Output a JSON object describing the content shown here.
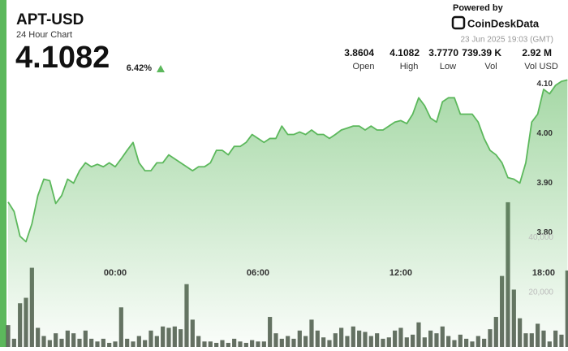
{
  "header": {
    "title": "APT-USD",
    "subtitle": "24 Hour Chart",
    "price": "4.1082",
    "change": "6.42%",
    "powered_by": "Powered by",
    "brand": "CoinDeskData",
    "timestamp": "23 Jun 2025 19:03 (GMT)",
    "stats": [
      {
        "value": "3.8604",
        "label": "Open"
      },
      {
        "value": "4.1082",
        "label": "High"
      },
      {
        "value": "3.7770",
        "label": "Low"
      },
      {
        "value": "739.39 K",
        "label": "Vol"
      },
      {
        "value": "2.92 M",
        "label": "Vol USD"
      }
    ]
  },
  "chart_data": {
    "type": "line",
    "xlim": [
      0,
      94
    ],
    "xticks": [
      {
        "value": 18,
        "label": "00:00"
      },
      {
        "value": 42,
        "label": "06:00"
      },
      {
        "value": 66,
        "label": "12:00"
      },
      {
        "value": 90,
        "label": "18:00"
      }
    ],
    "ylim": [
      3.57,
      4.12
    ],
    "yticks": [
      {
        "value": 3.8,
        "label": "3.80"
      },
      {
        "value": 3.9,
        "label": "3.90"
      },
      {
        "value": 4.0,
        "label": "4.00"
      },
      {
        "value": 4.1,
        "label": "4.10"
      }
    ],
    "y2lim": [
      0,
      100000
    ],
    "y2ticks": [
      {
        "value": 20000,
        "label": "20,000"
      },
      {
        "value": 40000,
        "label": "40,000"
      }
    ],
    "grid": false,
    "series": [
      {
        "color": "#5cb85c",
        "values": [
          3.862,
          3.843,
          3.793,
          3.782,
          3.818,
          3.875,
          3.908,
          3.905,
          3.859,
          3.875,
          3.908,
          3.9,
          3.925,
          3.941,
          3.933,
          3.938,
          3.933,
          3.941,
          3.933,
          3.949,
          3.966,
          3.982,
          3.941,
          3.925,
          3.925,
          3.941,
          3.941,
          3.957,
          3.949,
          3.941,
          3.933,
          3.925,
          3.933,
          3.933,
          3.941,
          3.966,
          3.966,
          3.957,
          3.974,
          3.974,
          3.982,
          3.998,
          3.99,
          3.982,
          3.99,
          3.99,
          4.015,
          3.998,
          3.998,
          4.003,
          3.998,
          4.007,
          3.998,
          3.998,
          3.99,
          3.998,
          4.007,
          4.011,
          4.015,
          4.015,
          4.007,
          4.015,
          4.007,
          4.007,
          4.015,
          4.023,
          4.026,
          4.02,
          4.039,
          4.072,
          4.056,
          4.031,
          4.023,
          4.064,
          4.072,
          4.072,
          4.039,
          4.039,
          4.039,
          4.023,
          3.99,
          3.966,
          3.957,
          3.941,
          3.911,
          3.908,
          3.9,
          3.941,
          4.023,
          4.039,
          4.089,
          4.08,
          4.097,
          4.105,
          4.108
        ]
      },
      {
        "type": "bar",
        "axis": "y2",
        "color": "#4a5448",
        "values": [
          8000,
          3000,
          16000,
          18000,
          29000,
          7000,
          4000,
          2500,
          5000,
          3000,
          6000,
          5000,
          3000,
          6000,
          3000,
          2000,
          3000,
          1500,
          2000,
          14500,
          3000,
          2000,
          4000,
          2500,
          6000,
          4000,
          7500,
          7000,
          7500,
          6500,
          23000,
          10000,
          4000,
          2000,
          2000,
          1500,
          2500,
          1500,
          3000,
          2000,
          1500,
          2500,
          2000,
          2000,
          11000,
          5000,
          3000,
          4000,
          3000,
          6000,
          4000,
          10000,
          6000,
          3500,
          2500,
          5000,
          7000,
          4000,
          7500,
          6000,
          5500,
          4000,
          5000,
          3000,
          3500,
          6000,
          7000,
          3500,
          4500,
          9000,
          3500,
          6000,
          5000,
          7500,
          4000,
          2500,
          4500,
          3000,
          2000,
          4000,
          3000,
          6500,
          11000,
          26000,
          53000,
          21000,
          10500,
          5000,
          5000,
          8500,
          6000,
          2000,
          6000,
          4500,
          28000
        ]
      }
    ]
  }
}
